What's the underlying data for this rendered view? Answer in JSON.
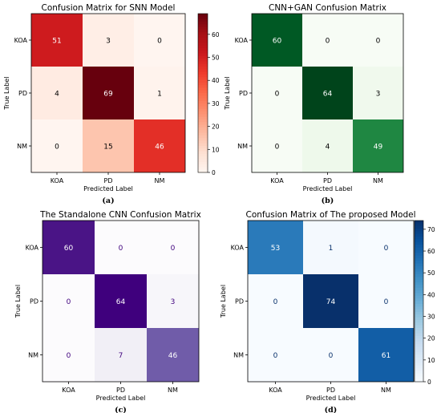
{
  "chart_data": [
    {
      "type": "heatmap",
      "title": "Confusion Matrix for SNN Model",
      "xlabel": "Predicted Label",
      "ylabel": "True Label",
      "x_categories": [
        "KOA",
        "PD",
        "NM"
      ],
      "y_categories": [
        "KOA",
        "PD",
        "NM"
      ],
      "values": [
        [
          51,
          3,
          0
        ],
        [
          4,
          69,
          1
        ],
        [
          0,
          15,
          46
        ]
      ],
      "colormap": "Reds",
      "color_low": "#fff5f0",
      "color_high": "#67000d",
      "colorbar": true,
      "colorbar_range": [
        0,
        69
      ],
      "colorbar_ticks": [
        0,
        10,
        20,
        30,
        40,
        50,
        60
      ],
      "caption": "(a)"
    },
    {
      "type": "heatmap",
      "title": "CNN+GAN Confusion Matrix",
      "xlabel": "Predicted Label",
      "ylabel": "True Label",
      "x_categories": [
        "KOA",
        "PD",
        "NM"
      ],
      "y_categories": [
        "KOA",
        "PD",
        "NM"
      ],
      "values": [
        [
          60,
          0,
          0
        ],
        [
          0,
          64,
          3
        ],
        [
          0,
          4,
          49
        ]
      ],
      "colormap": "Greens",
      "color_low": "#f7fcf5",
      "color_high": "#00441b",
      "colorbar": false,
      "caption": "(b)"
    },
    {
      "type": "heatmap",
      "title": "The Standalone CNN Confusion Matrix",
      "xlabel": "Predicted Label",
      "ylabel": "True Label",
      "x_categories": [
        "KOA",
        "PD",
        "NM"
      ],
      "y_categories": [
        "KOA",
        "PD",
        "NM"
      ],
      "values": [
        [
          60,
          0,
          0
        ],
        [
          0,
          64,
          3
        ],
        [
          0,
          7,
          46
        ]
      ],
      "colormap": "Purples",
      "color_low": "#fcfbfd",
      "color_high": "#3f007d",
      "colorbar": false,
      "caption": "(c)"
    },
    {
      "type": "heatmap",
      "title": "Confusion Matrix of The proposed Model",
      "xlabel": "Predicted Label",
      "ylabel": "True Label",
      "x_categories": [
        "KOA",
        "PD",
        "NM"
      ],
      "y_categories": [
        "KOA",
        "PD",
        "NM"
      ],
      "values": [
        [
          53,
          1,
          0
        ],
        [
          0,
          74,
          0
        ],
        [
          0,
          0,
          61
        ]
      ],
      "colormap": "Blues",
      "color_low": "#f7fbff",
      "color_high": "#08306b",
      "colorbar": true,
      "colorbar_range": [
        0,
        74
      ],
      "colorbar_ticks": [
        0,
        10,
        20,
        30,
        40,
        50,
        60,
        70
      ],
      "caption": "(d)"
    }
  ]
}
